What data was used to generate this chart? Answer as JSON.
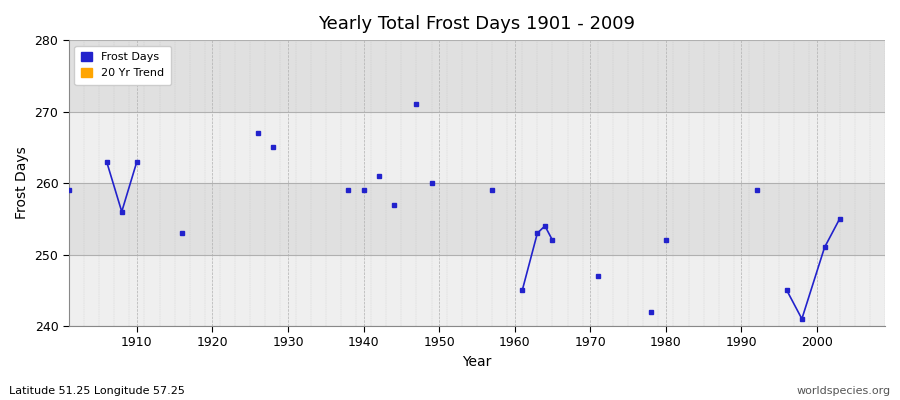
{
  "title": "Yearly Total Frost Days 1901 - 2009",
  "xlabel": "Year",
  "ylabel": "Frost Days",
  "subtitle": "Latitude 51.25 Longitude 57.25",
  "watermark": "worldspecies.org",
  "ylim": [
    240,
    280
  ],
  "xlim": [
    1901,
    2009
  ],
  "fig_bg_color": "#ffffff",
  "plot_bg_color": "#e8e8e8",
  "band_light_color": "#efefef",
  "band_dark_color": "#e0e0e0",
  "grid_color": "#b0b0b0",
  "line_color": "#2222cc",
  "frost_days_color": "#2222cc",
  "trend_color": "#ffa500",
  "data_points": [
    [
      1901,
      259
    ],
    [
      1906,
      263
    ],
    [
      1908,
      256
    ],
    [
      1910,
      263
    ],
    [
      1916,
      253
    ],
    [
      1926,
      267
    ],
    [
      1928,
      265
    ],
    [
      1938,
      259
    ],
    [
      1940,
      259
    ],
    [
      1942,
      261
    ],
    [
      1944,
      257
    ],
    [
      1947,
      271
    ],
    [
      1949,
      260
    ],
    [
      1957,
      259
    ],
    [
      1961,
      245
    ],
    [
      1963,
      253
    ],
    [
      1964,
      254
    ],
    [
      1965,
      252
    ],
    [
      1971,
      247
    ],
    [
      1978,
      242
    ],
    [
      1980,
      252
    ],
    [
      1992,
      259
    ],
    [
      1996,
      245
    ],
    [
      1998,
      241
    ],
    [
      2001,
      251
    ],
    [
      2003,
      255
    ]
  ],
  "connected_segments": [
    [
      [
        1906,
        263
      ],
      [
        1908,
        256
      ],
      [
        1910,
        263
      ]
    ],
    [
      [
        1961,
        245
      ],
      [
        1963,
        253
      ],
      [
        1964,
        254
      ],
      [
        1965,
        252
      ]
    ],
    [
      [
        1996,
        245
      ],
      [
        1998,
        241
      ],
      [
        2001,
        251
      ],
      [
        2003,
        255
      ]
    ]
  ],
  "yticks": [
    240,
    250,
    260,
    270,
    280
  ],
  "xticks": [
    1910,
    1920,
    1930,
    1940,
    1950,
    1960,
    1970,
    1980,
    1990,
    2000
  ]
}
